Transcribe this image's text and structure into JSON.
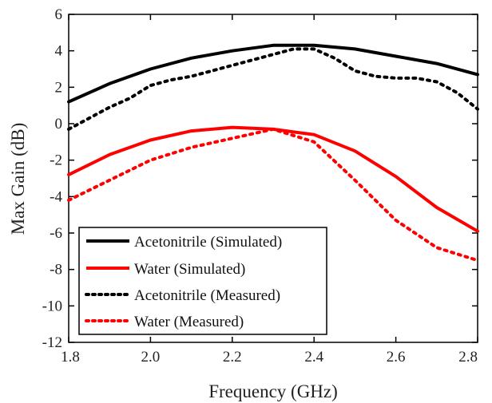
{
  "chart_data": {
    "type": "line",
    "title": "",
    "xlabel": "Frequency (GHz)",
    "ylabel": "Max Gain (dB)",
    "xlim": [
      1.8,
      2.8
    ],
    "ylim": [
      -12,
      6
    ],
    "xticks": [
      "1.8",
      "2.0",
      "2.2",
      "2.4",
      "2.6",
      "2.8"
    ],
    "yticks": [
      "6",
      "4",
      "2",
      "0",
      "-2",
      "-4",
      "-6",
      "-8",
      "-10",
      "-12"
    ],
    "grid": false,
    "legend_position": "bottom-left",
    "x": [
      1.8,
      1.9,
      2.0,
      2.1,
      2.2,
      2.3,
      2.4,
      2.5,
      2.6,
      2.7,
      2.8
    ],
    "series": [
      {
        "name": "Acetonitrile (Simulated)",
        "color": "#000000",
        "style": "solid",
        "values": [
          1.2,
          2.2,
          3.0,
          3.6,
          4.0,
          4.3,
          4.3,
          4.1,
          3.7,
          3.3,
          2.7
        ]
      },
      {
        "name": "Water (Simulated)",
        "color": "#ff0000",
        "style": "solid",
        "values": [
          -2.8,
          -1.7,
          -0.9,
          -0.4,
          -0.2,
          -0.3,
          -0.6,
          -1.5,
          -2.9,
          -4.6,
          -5.9
        ]
      },
      {
        "name": "Acetonitrile (Measured)",
        "color": "#000000",
        "style": "dotted",
        "x": [
          1.8,
          1.85,
          1.9,
          1.95,
          2.0,
          2.05,
          2.1,
          2.15,
          2.2,
          2.25,
          2.3,
          2.35,
          2.4,
          2.45,
          2.5,
          2.55,
          2.6,
          2.65,
          2.7,
          2.75,
          2.8
        ],
        "values": [
          -0.3,
          0.3,
          0.9,
          1.4,
          2.1,
          2.4,
          2.6,
          2.9,
          3.2,
          3.5,
          3.8,
          4.1,
          4.1,
          3.6,
          2.9,
          2.6,
          2.5,
          2.5,
          2.3,
          1.7,
          0.8
        ]
      },
      {
        "name": "Water (Measured)",
        "color": "#ff0000",
        "style": "dotted",
        "values": [
          -4.2,
          -3.1,
          -2.0,
          -1.3,
          -0.8,
          -0.3,
          -1.0,
          -3.1,
          -5.3,
          -6.8,
          -7.5
        ]
      }
    ]
  }
}
